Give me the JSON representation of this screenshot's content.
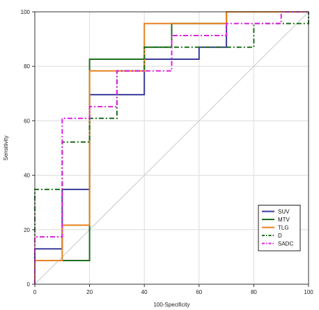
{
  "chart_data": {
    "type": "line",
    "xlabel": "100-Specificity",
    "ylabel": "Sensitivity",
    "xlim": [
      0,
      100
    ],
    "ylim": [
      0,
      100
    ],
    "xticks": [
      "0",
      "20",
      "40",
      "60",
      "80",
      "100"
    ],
    "yticks": [
      "0",
      "20",
      "40",
      "60",
      "80",
      "100"
    ],
    "grid": true,
    "legend_position": "bottom-right",
    "reference_line": {
      "from": [
        0,
        0
      ],
      "to": [
        100,
        100
      ],
      "color": "#c8c8c8"
    },
    "series": [
      {
        "name": "SUV",
        "color": "#3a3a9a",
        "dash": "solid",
        "points": [
          [
            0,
            0
          ],
          [
            0,
            13
          ],
          [
            10,
            13
          ],
          [
            10,
            34.8
          ],
          [
            20,
            34.8
          ],
          [
            20,
            69.6
          ],
          [
            40,
            69.6
          ],
          [
            40,
            82.6
          ],
          [
            60,
            82.6
          ],
          [
            60,
            87
          ],
          [
            70,
            87
          ],
          [
            70,
            100
          ],
          [
            100,
            100
          ]
        ]
      },
      {
        "name": "MTV",
        "color": "#1e6e1e",
        "dash": "solid",
        "points": [
          [
            0,
            0
          ],
          [
            0,
            8.7
          ],
          [
            20,
            8.7
          ],
          [
            20,
            82.6
          ],
          [
            40,
            82.6
          ],
          [
            40,
            87
          ],
          [
            50,
            87
          ],
          [
            50,
            95.7
          ],
          [
            70,
            95.7
          ],
          [
            70,
            100
          ],
          [
            100,
            100
          ]
        ]
      },
      {
        "name": "TLG",
        "color": "#e8821e",
        "dash": "solid",
        "points": [
          [
            0,
            0
          ],
          [
            0,
            8.7
          ],
          [
            10,
            8.7
          ],
          [
            10,
            21.7
          ],
          [
            20,
            21.7
          ],
          [
            20,
            78.3
          ],
          [
            40,
            78.3
          ],
          [
            40,
            95.7
          ],
          [
            70,
            95.7
          ],
          [
            70,
            100
          ],
          [
            100,
            100
          ]
        ]
      },
      {
        "name": "D",
        "color": "#1e6e1e",
        "dash": "dashdot",
        "points": [
          [
            0,
            0
          ],
          [
            0,
            34.8
          ],
          [
            10,
            34.8
          ],
          [
            10,
            52.2
          ],
          [
            20,
            52.2
          ],
          [
            20,
            60.9
          ],
          [
            30,
            60.9
          ],
          [
            30,
            78.3
          ],
          [
            40,
            78.3
          ],
          [
            40,
            87
          ],
          [
            80,
            87
          ],
          [
            80,
            95.7
          ],
          [
            100,
            95.7
          ],
          [
            100,
            100
          ]
        ]
      },
      {
        "name": "SADC",
        "color": "#e020e0",
        "dash": "dashdot",
        "points": [
          [
            0,
            0
          ],
          [
            0,
            17.4
          ],
          [
            10,
            17.4
          ],
          [
            10,
            60.9
          ],
          [
            20,
            60.9
          ],
          [
            20,
            65.2
          ],
          [
            30,
            65.2
          ],
          [
            30,
            78.3
          ],
          [
            50,
            78.3
          ],
          [
            50,
            91.3
          ],
          [
            70,
            91.3
          ],
          [
            70,
            95.7
          ],
          [
            90,
            95.7
          ],
          [
            90,
            100
          ],
          [
            100,
            100
          ]
        ]
      }
    ]
  }
}
